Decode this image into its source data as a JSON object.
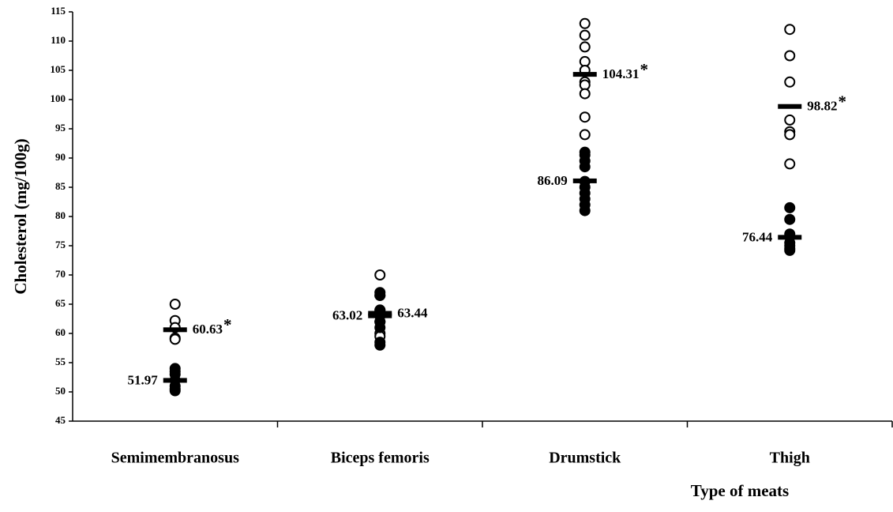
{
  "chart_data": {
    "type": "dot",
    "y_label": "Cholesterol (mg/100g)",
    "x_label": "Type of meats",
    "categories": [
      "Semimembranosus",
      "Biceps femoris",
      "Drumstick",
      "Thigh"
    ],
    "ylim": [
      45,
      115
    ],
    "yticks": [
      45,
      50,
      55,
      60,
      65,
      70,
      75,
      80,
      85,
      90,
      95,
      100,
      105,
      110,
      115
    ],
    "color": "#000000",
    "series": [
      {
        "marker": "open",
        "label_side": "right",
        "values": [
          [
            65,
            62.2,
            61,
            59.2,
            59
          ],
          [
            70,
            66.5,
            64,
            63.5,
            62,
            60,
            59.5
          ],
          [
            113,
            111,
            109,
            106.5,
            105,
            103,
            102.5,
            101,
            97,
            94
          ],
          [
            112,
            107.5,
            103,
            96.5,
            94.5,
            94,
            89
          ]
        ],
        "means": [
          60.63,
          63.44,
          104.31,
          98.82
        ],
        "mean_notes": [
          "*",
          null,
          "*",
          "*"
        ]
      },
      {
        "marker": "filled",
        "label_side": "left",
        "values": [
          [
            54,
            53.5,
            53,
            52,
            51,
            50.5,
            50.2
          ],
          [
            67,
            66.5,
            64,
            63,
            62,
            61,
            58.5,
            58
          ],
          [
            91,
            90.5,
            89.5,
            88.5,
            86,
            85,
            84,
            83,
            82,
            81
          ],
          [
            81.5,
            79.5,
            77,
            76.5,
            75.5,
            75,
            74.5,
            74.2
          ]
        ],
        "means": [
          51.97,
          63.02,
          86.09,
          76.44
        ],
        "mean_notes": [
          null,
          null,
          null,
          null
        ]
      }
    ]
  }
}
